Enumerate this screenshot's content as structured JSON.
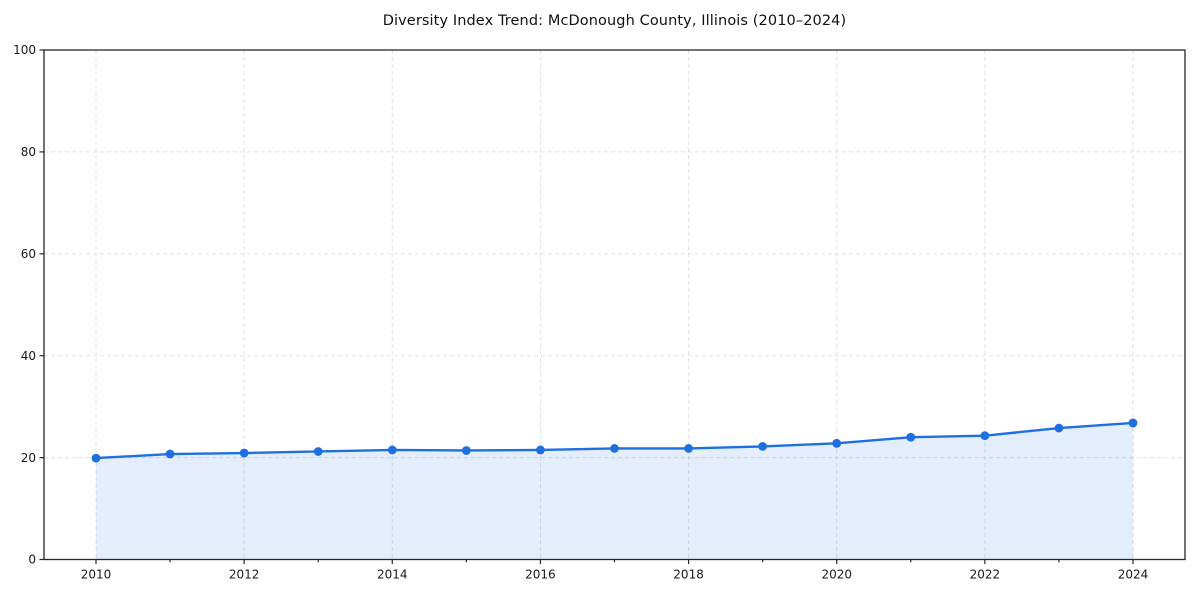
{
  "page": {
    "background": "#ffffff"
  },
  "chart_data": {
    "type": "line",
    "title": "Diversity Index Trend: McDonough County, Illinois (2010–2024)",
    "x": [
      2010,
      2011,
      2012,
      2013,
      2014,
      2015,
      2016,
      2017,
      2018,
      2019,
      2020,
      2021,
      2022,
      2023,
      2024
    ],
    "series": [
      {
        "name": "Diversity Index",
        "values": [
          19.9,
          20.7,
          20.9,
          21.2,
          21.5,
          21.4,
          21.5,
          21.8,
          21.8,
          22.2,
          22.8,
          24.0,
          24.3,
          25.8,
          26.8
        ]
      }
    ],
    "xlabel": "",
    "ylabel": "",
    "ylim": [
      0,
      100
    ],
    "yticks": [
      0,
      20,
      40,
      60,
      80,
      100
    ],
    "xticks_labeled": [
      2010,
      2012,
      2014,
      2016,
      2018,
      2020,
      2022,
      2024
    ],
    "grid": true,
    "legend_position": "none",
    "line_color": "#1f6fe0",
    "fill_opacity": 0.12,
    "marker": "circle",
    "axis_color": "#262626",
    "grid_color": "#e0e0e0",
    "text_color": "#1a1a1a"
  }
}
